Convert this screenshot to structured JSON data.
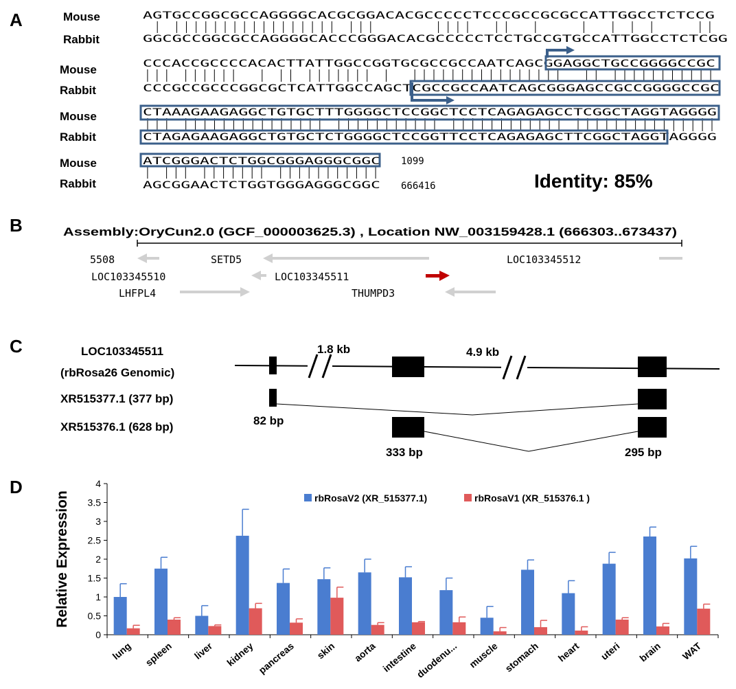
{
  "panel_a": {
    "letter": "A",
    "rows": [
      {
        "label": "Mouse",
        "seq": "AGTGCCGGCGCCAGGGGCACGCGGACACGCCCCCTCCCGCCGCGCCATTGGCCTCTCCG"
      },
      {
        "label": "Rabbit",
        "seq": "GGCGCCGGCGCCAGGGGCACCCGGGACACGCCCCCTCCTGCCGTGCCATTGGCCTCTCGG"
      },
      {
        "label": "Mouse",
        "seq": "CCCACCGCCCCACACTTATTGGCCGGTGCGCCGCCAATCAGCGGAGGCTGCCGGGGCCGC"
      },
      {
        "label": "Rabbit",
        "seq": "CCCGCCGCCCGGCGCTCATTGGCCAGCTCGCCGCCAATCAGCGGGAGCCGCCGGGGCCGC"
      },
      {
        "label": "Mouse",
        "seq": "CTAAAGAAGAGGCTGTGCTTTGGGGCTCCGGCTCCTCAGAGAGCCTCGGCTAGGTAGGGG"
      },
      {
        "label": "Rabbit",
        "seq": "CTAGAGAAGAGGCTGTGCTCTGGGGCTCCGGTTCCTCAGAGAGCTTCGGCTAGGTAGGGG"
      },
      {
        "label": "Mouse",
        "seq": "ATCGGGACTCTGGCGGGAGGGCGGC"
      },
      {
        "label": "Rabbit",
        "seq": "AGCGGAACTCTGGTGGGAGGGCGGC"
      }
    ],
    "end_positions": [
      "1099",
      "666416"
    ],
    "identity": "Identity: 85%"
  },
  "panel_b": {
    "letter": "B",
    "assembly": "Assembly:OryCun2.0 (GCF_000003625.3) , Location  NW_003159428.1 (666303..673437)",
    "genes": [
      "5508",
      "SETD5",
      "LOC103345512",
      "LOC103345510",
      "LOC103345511",
      "LHFPL4",
      "THUMPD3"
    ],
    "colors": {
      "highlight": "#c00000",
      "grey": "#d0d0d0"
    }
  },
  "panel_c": {
    "letter": "C",
    "labels": [
      "LOC103345511",
      "(rbRosa26 Genomic)",
      "XR515377.1 (377 bp)",
      "XR515376.1 (628 bp)"
    ],
    "gaps": [
      "1.8 kb",
      "4.9 kb"
    ],
    "exons": [
      "82 bp",
      "333 bp",
      "295 bp"
    ]
  },
  "panel_d": {
    "letter": "D",
    "chart_data": {
      "type": "bar",
      "ylabel": "Relative Expression",
      "ylim": [
        0,
        4
      ],
      "yticks": [
        "0",
        "0.5",
        "1",
        "1.5",
        "2",
        "2.5",
        "3",
        "3.5",
        "4"
      ],
      "categories": [
        "lung",
        "spleen",
        "liver",
        "kidney",
        "pancreas",
        "skin",
        "aorta",
        "intestine",
        "duodenu...",
        "muscle",
        "stomach",
        "heart",
        "uteri",
        "brain",
        "WAT"
      ],
      "series": [
        {
          "name": "rbRosaV2 (XR_515377.1)",
          "color": "#4a7dd0",
          "values": [
            1.0,
            1.75,
            0.5,
            2.62,
            1.37,
            1.47,
            1.65,
            1.52,
            1.18,
            0.45,
            1.72,
            1.1,
            1.88,
            2.6,
            2.02
          ],
          "errors": [
            0.35,
            0.3,
            0.27,
            0.7,
            0.37,
            0.3,
            0.35,
            0.28,
            0.32,
            0.3,
            0.26,
            0.33,
            0.3,
            0.25,
            0.32
          ]
        },
        {
          "name": "rbRosaV1 (XR_515376.1 )",
          "color": "#e05a5a",
          "values": [
            0.17,
            0.4,
            0.23,
            0.7,
            0.32,
            0.98,
            0.26,
            0.33,
            0.33,
            0.09,
            0.2,
            0.11,
            0.4,
            0.22,
            0.69
          ],
          "errors": [
            0.08,
            0.05,
            0.03,
            0.13,
            0.1,
            0.28,
            0.06,
            0.02,
            0.14,
            0.1,
            0.18,
            0.1,
            0.05,
            0.08,
            0.12
          ]
        }
      ],
      "legend": "top"
    }
  }
}
